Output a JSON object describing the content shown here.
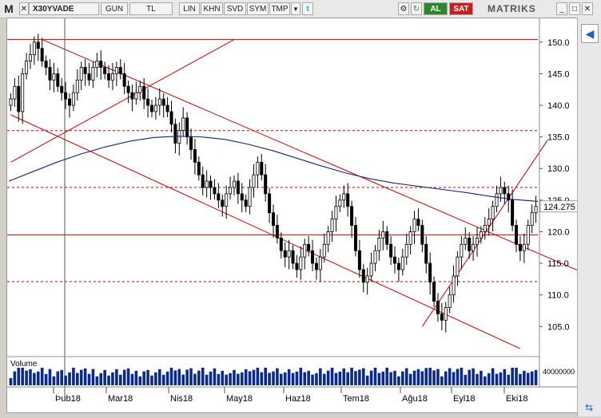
{
  "toolbar": {
    "logo": "M",
    "symbol": "X30YVADE",
    "period": "GUN",
    "currency": "TL",
    "buttons": [
      "LIN",
      "KHN",
      "SVD",
      "SYM",
      "TMP"
    ],
    "buy_label": "AL",
    "sell_label": "SAT",
    "brand": "MATRIKS",
    "colors": {
      "buy": "#2a8a2a",
      "sell": "#c81e1e",
      "brand": "#555555"
    }
  },
  "chart_data": {
    "type": "candlestick",
    "title": "",
    "last_price_label": "124.275",
    "ylim": [
      101,
      153
    ],
    "y_ticks": [
      105,
      110,
      115,
      120,
      125,
      130,
      135,
      140,
      145,
      150
    ],
    "x_tick_labels": [
      "Þub18",
      "Mar18",
      "Nis18",
      "May18",
      "Haz18",
      "Tem18",
      "Ağu18",
      "Eyl18",
      "Eki18"
    ],
    "close_series": [
      141,
      143,
      139,
      145,
      147,
      148,
      150,
      149,
      147,
      146,
      144,
      145,
      143,
      142,
      141,
      140,
      142,
      144,
      146,
      145,
      144,
      146,
      147,
      146,
      145,
      144,
      145,
      146,
      145,
      143,
      142,
      141,
      142,
      143,
      141,
      140,
      139,
      140,
      141,
      140,
      139,
      137,
      134,
      136,
      138,
      135,
      133,
      131,
      129,
      127,
      128,
      127,
      126,
      125,
      124,
      126,
      127,
      128,
      126,
      125,
      124,
      127,
      129,
      131,
      129,
      126,
      123,
      121,
      119,
      117,
      116,
      117,
      115,
      114,
      116,
      118,
      117,
      115,
      114,
      116,
      118,
      120,
      122,
      124,
      125,
      126,
      124,
      121,
      117,
      114,
      112,
      113,
      115,
      117,
      119,
      120,
      118,
      116,
      115,
      114,
      116,
      118,
      120,
      122,
      121,
      118,
      115,
      112,
      109,
      107,
      106,
      108,
      110,
      113,
      116,
      118,
      119,
      117,
      118,
      119,
      120,
      121,
      122,
      124,
      126,
      127,
      126,
      125,
      121,
      118,
      117,
      118,
      121,
      123,
      124
    ],
    "moving_average": [
      128,
      129.5,
      131,
      132.3,
      133.4,
      134.3,
      134.9,
      135.1,
      135.0,
      134.6,
      133.8,
      132.8,
      131.6,
      130.4,
      129.3,
      128.4,
      127.7,
      127.2,
      126.7,
      126.2,
      125.6,
      125.1,
      124.8
    ],
    "horizontal_lines": [
      {
        "value": 150.4,
        "style": "solid"
      },
      {
        "value": 136,
        "style": "dashed"
      },
      {
        "value": 127,
        "style": "dashed"
      },
      {
        "value": 119.5,
        "style": "solid"
      },
      {
        "value": 112.1,
        "style": "dashed"
      }
    ],
    "grid": false,
    "volume_label": "Volume",
    "volume_axis_label": "40000000",
    "colors": {
      "candle": "#000000",
      "moving_average": "#1a237e",
      "trend_lines": "#cc0000",
      "volume": "#0b2a8a"
    }
  }
}
